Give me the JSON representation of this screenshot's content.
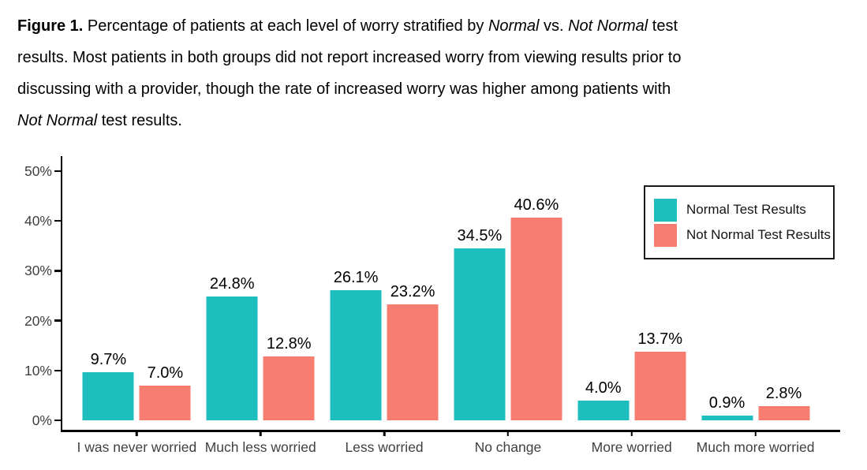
{
  "figure": {
    "caption_lines": [
      [
        {
          "text": "Figure 1.",
          "bold": true
        },
        {
          "text": " Percentage of patients at each level of worry stratified by "
        },
        {
          "text": "Normal",
          "italic": true
        },
        {
          "text": " vs. "
        },
        {
          "text": "Not Normal",
          "italic": true
        },
        {
          "text": " test"
        }
      ],
      [
        {
          "text": "results. Most patients in both groups did not report increased worry from viewing results prior to"
        }
      ],
      [
        {
          "text": "discussing with a provider, though the rate of increased worry was higher among patients with"
        }
      ],
      [
        {
          "text": "Not Normal",
          "italic": true
        },
        {
          "text": " test results."
        }
      ]
    ]
  },
  "chart_data": {
    "type": "bar",
    "title": "",
    "xlabel": "",
    "ylabel": "",
    "categories": [
      "I was never worried",
      "Much less worried",
      "Less worried",
      "No change",
      "More worried",
      "Much more worried"
    ],
    "series": [
      {
        "name": "Normal Test Results",
        "color": "#1EBEBF",
        "values": [
          9.7,
          24.8,
          26.1,
          34.5,
          4.0,
          0.9
        ],
        "labels": [
          "9.7%",
          "24.8%",
          "26.1%",
          "34.5%",
          "4.0%",
          "0.9%"
        ]
      },
      {
        "name": "Not Normal Test Results",
        "color": "#F87D71",
        "values": [
          7.0,
          12.8,
          23.2,
          40.6,
          13.7,
          2.8
        ],
        "labels": [
          "7.0%",
          "12.8%",
          "23.2%",
          "40.6%",
          "13.7%",
          "2.8%"
        ]
      }
    ],
    "y_ticks": [
      "0%",
      "10%",
      "20%",
      "30%",
      "40%",
      "50%"
    ],
    "ylim": [
      0,
      50
    ],
    "grid": false,
    "legend": {
      "position": "top-right",
      "border": true
    }
  }
}
